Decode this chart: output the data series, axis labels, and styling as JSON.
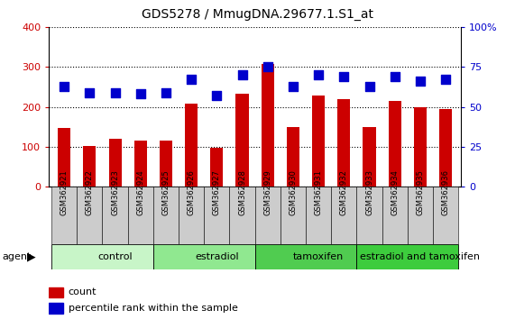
{
  "title": "GDS5278 / MmugDNA.29677.1.S1_at",
  "samples": [
    "GSM362921",
    "GSM362922",
    "GSM362923",
    "GSM362924",
    "GSM362925",
    "GSM362926",
    "GSM362927",
    "GSM362928",
    "GSM362929",
    "GSM362930",
    "GSM362931",
    "GSM362932",
    "GSM362933",
    "GSM362934",
    "GSM362935",
    "GSM362936"
  ],
  "counts": [
    148,
    103,
    120,
    115,
    115,
    207,
    97,
    232,
    307,
    150,
    228,
    220,
    150,
    215,
    200,
    194
  ],
  "percentiles": [
    63,
    59,
    59,
    58,
    59,
    67,
    57,
    70,
    75,
    63,
    70,
    69,
    63,
    69,
    66,
    67
  ],
  "groups": [
    {
      "label": "control",
      "start": 0,
      "end": 4,
      "color": "#c8f5c8"
    },
    {
      "label": "estradiol",
      "start": 4,
      "end": 8,
      "color": "#90e890"
    },
    {
      "label": "tamoxifen",
      "start": 8,
      "end": 12,
      "color": "#50cc50"
    },
    {
      "label": "estradiol and tamoxifen",
      "start": 12,
      "end": 16,
      "color": "#3dcc3d"
    }
  ],
  "bar_color": "#cc0000",
  "dot_color": "#0000cc",
  "ylim_left": [
    0,
    400
  ],
  "ylim_right": [
    0,
    100
  ],
  "yticks_left": [
    0,
    100,
    200,
    300,
    400
  ],
  "yticks_right": [
    0,
    25,
    50,
    75,
    100
  ],
  "background_color": "#ffffff",
  "bar_width": 0.5,
  "dot_size": 55,
  "dot_marker": "s",
  "sample_box_color": "#cccccc",
  "title_fontsize": 10,
  "tick_fontsize": 8,
  "legend_fontsize": 8,
  "group_fontsize": 8,
  "sample_fontsize": 6
}
